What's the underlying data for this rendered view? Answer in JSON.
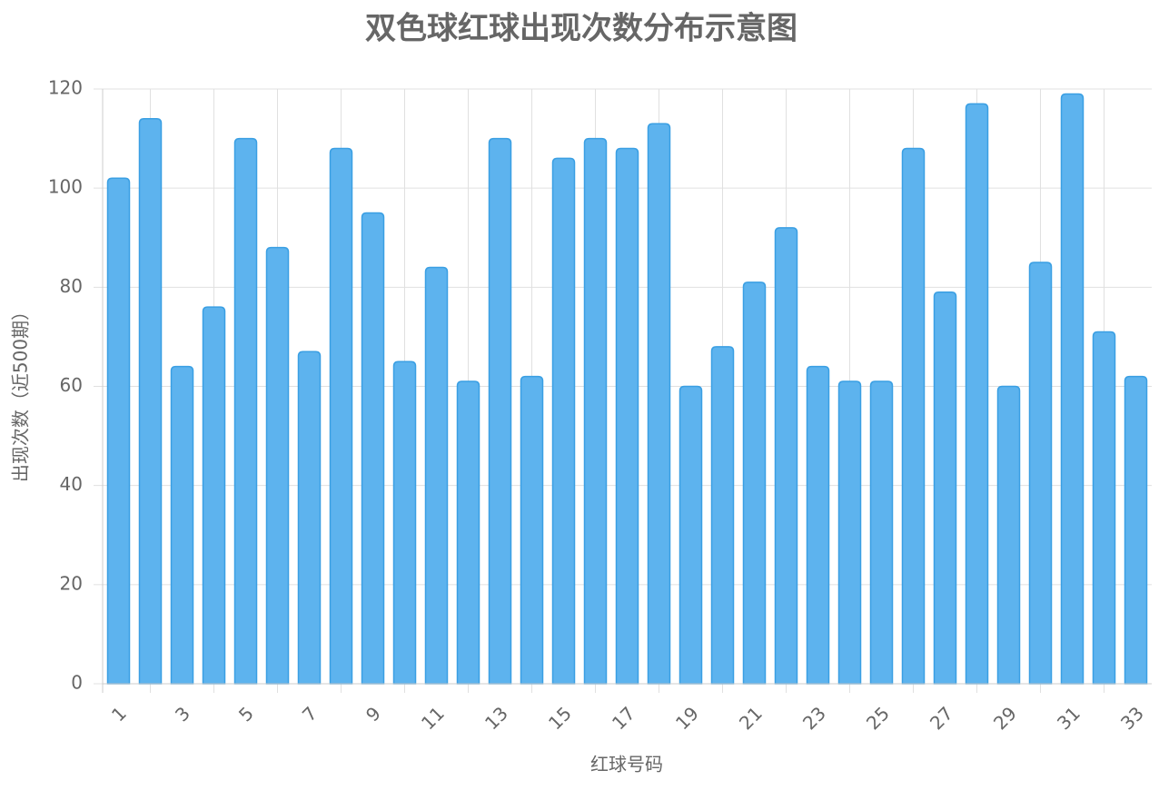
{
  "chart_data": {
    "type": "bar",
    "title": "双色球红球出现次数分布示意图",
    "x_label": "红球号码",
    "y_label": "出现次数（近500期）",
    "categories": [
      "1",
      null,
      "3",
      null,
      "5",
      null,
      "7",
      null,
      "9",
      null,
      "11",
      null,
      "13",
      null,
      "15",
      null,
      "17",
      null,
      "19",
      null,
      "21",
      null,
      "23",
      null,
      "25",
      null,
      "27",
      null,
      "29",
      null,
      "31",
      null,
      "33"
    ],
    "values": [
      102,
      114,
      64,
      76,
      110,
      88,
      67,
      108,
      95,
      65,
      84,
      61,
      110,
      62,
      106,
      110,
      108,
      113,
      60,
      68,
      81,
      92,
      64,
      61,
      61,
      108,
      79,
      117,
      60,
      85,
      119,
      71,
      62
    ],
    "color": "#5db3ee",
    "ylim": [
      0,
      120
    ],
    "yticks": [
      0,
      20,
      40,
      60,
      80,
      100,
      120
    ],
    "grid": true
  }
}
